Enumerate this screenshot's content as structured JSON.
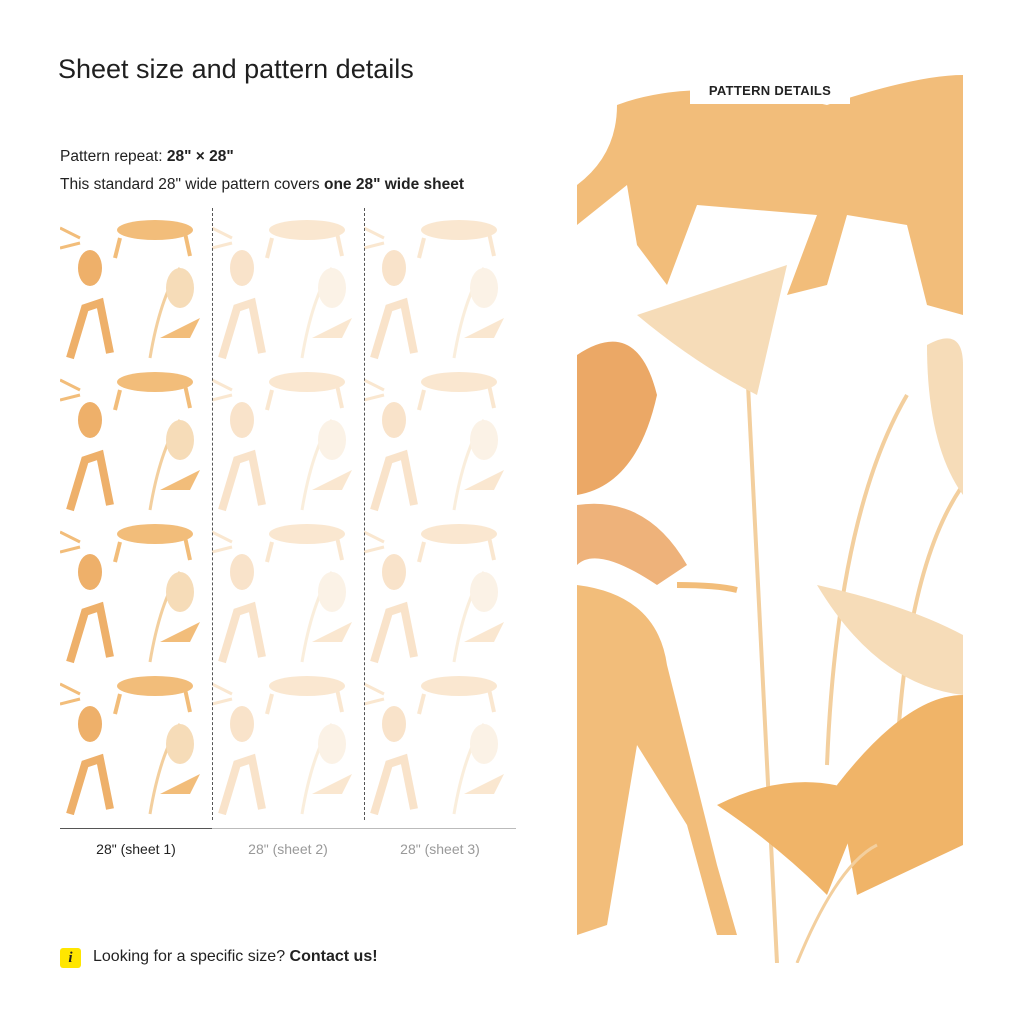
{
  "title": "Sheet size and pattern details",
  "repeat": {
    "label": "Pattern repeat: ",
    "value": "28\" × 28\""
  },
  "coverage": {
    "text": "This standard 28\" wide pattern covers ",
    "bold": "one 28\" wide sheet"
  },
  "sheets": [
    {
      "label": "28\" (sheet 1)"
    },
    {
      "label": "28\" (sheet 2)"
    },
    {
      "label": "28\" (sheet 3)"
    }
  ],
  "info": {
    "icon": "info-icon",
    "icon_glyph": "i",
    "text": "Looking for a specific size? ",
    "link": "Contact us!"
  },
  "detail": {
    "tag": "PATTERN DETAILS"
  },
  "colors": {
    "accent": "#f0b468",
    "light": "#f6dcb8",
    "info_bg": "#ffe600"
  }
}
